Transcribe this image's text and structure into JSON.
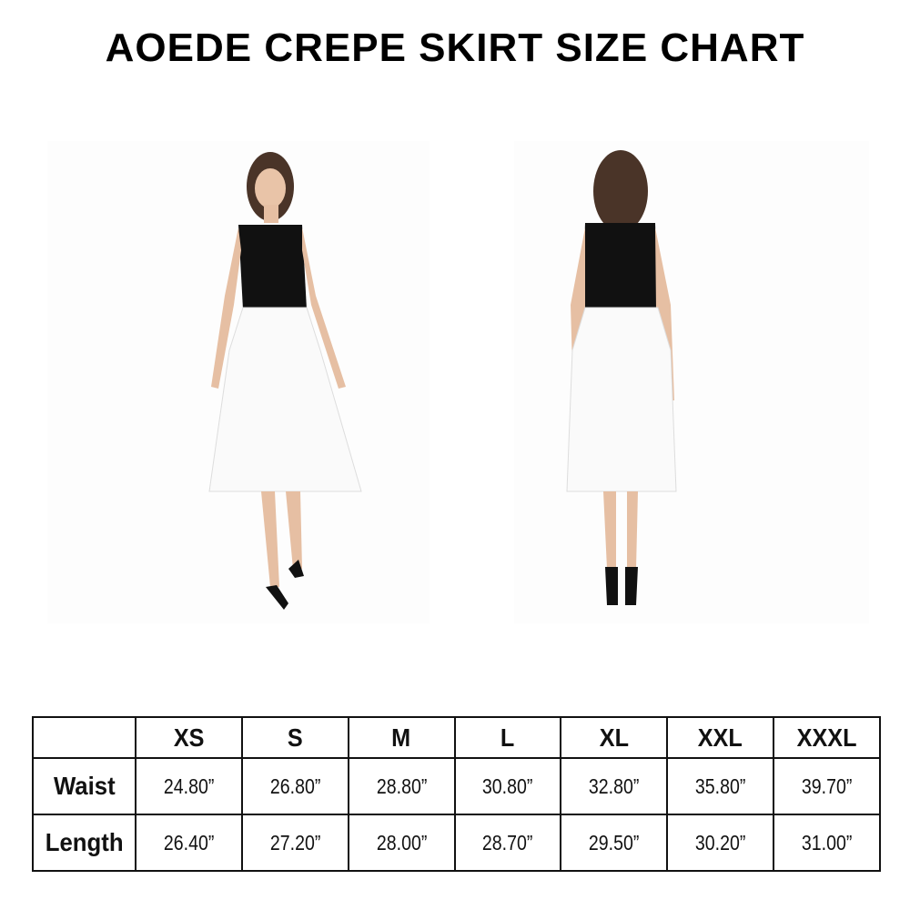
{
  "title": "AOEDE CREPE SKIRT SIZE CHART",
  "images": [
    {
      "view": "front",
      "icon": "model-front-photo"
    },
    {
      "view": "back",
      "icon": "model-back-photo"
    }
  ],
  "table": {
    "sizes": [
      "XS",
      "S",
      "M",
      "L",
      "XL",
      "XXL",
      "XXXL"
    ],
    "rows": [
      {
        "label": "Waist",
        "values": [
          "24.80”",
          "26.80”",
          "28.80”",
          "30.80”",
          "32.80”",
          "35.80”",
          "39.70”"
        ]
      },
      {
        "label": "Length",
        "values": [
          "26.40”",
          "27.20”",
          "28.00”",
          "28.70”",
          "29.50”",
          "30.20”",
          "31.00”"
        ]
      }
    ]
  }
}
